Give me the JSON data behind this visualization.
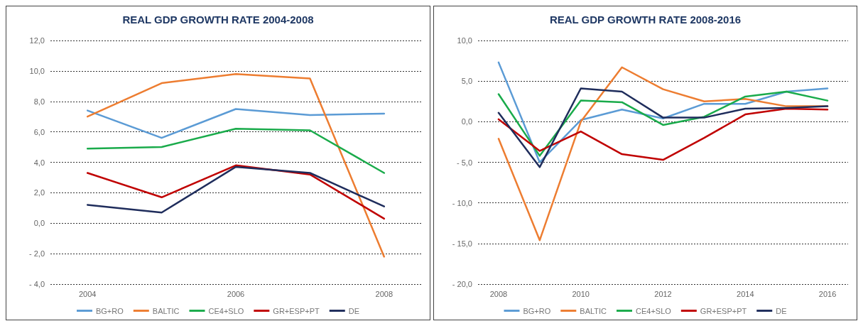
{
  "chart_data": [
    {
      "type": "line",
      "title": "REAL GDP GROWTH RATE 2004-2008",
      "categories": [
        "2004",
        null,
        "2006",
        null,
        "2008"
      ],
      "ylim": [
        -4,
        12
      ],
      "yticks": [
        {
          "value": -4,
          "label": "- 4,0"
        },
        {
          "value": -2,
          "label": "- 2,0"
        },
        {
          "value": 0,
          "label": "0,0"
        },
        {
          "value": 2,
          "label": "2,0"
        },
        {
          "value": 4,
          "label": "4,0"
        },
        {
          "value": 6,
          "label": "6,0"
        },
        {
          "value": 8,
          "label": "8,0"
        },
        {
          "value": 10,
          "label": "10,0"
        },
        {
          "value": 12,
          "label": "12,0"
        }
      ],
      "grid": "y",
      "legend": "bottom",
      "marker": "none",
      "line_style": "solid",
      "series": [
        {
          "name": "BG+RO",
          "color": "#5b9bd5",
          "values": [
            7.4,
            5.6,
            7.5,
            7.1,
            7.2
          ]
        },
        {
          "name": "BALTIC",
          "color": "#ed7d31",
          "values": [
            7.0,
            9.2,
            9.8,
            9.5,
            -2.2
          ]
        },
        {
          "name": "CE4+SLO",
          "color": "#1aab4b",
          "values": [
            4.9,
            5.0,
            6.2,
            6.1,
            3.3
          ]
        },
        {
          "name": "GR+ESP+PT",
          "color": "#c00000",
          "values": [
            3.3,
            1.7,
            3.8,
            3.2,
            0.3
          ]
        },
        {
          "name": "DE",
          "color": "#1f2d5c",
          "values": [
            1.2,
            0.7,
            3.7,
            3.3,
            1.1
          ]
        }
      ]
    },
    {
      "type": "line",
      "title": "REAL GDP GROWTH RATE 2008-2016",
      "categories": [
        "2008",
        null,
        "2010",
        null,
        "2012",
        null,
        "2014",
        null,
        "2016"
      ],
      "ylim": [
        -20,
        10
      ],
      "yticks": [
        {
          "value": -20,
          "label": "- 20,0"
        },
        {
          "value": -15,
          "label": "- 15,0"
        },
        {
          "value": -10,
          "label": "- 10,0"
        },
        {
          "value": -5,
          "label": "- 5,0"
        },
        {
          "value": 0,
          "label": "0,0"
        },
        {
          "value": 5,
          "label": "5,0"
        },
        {
          "value": 10,
          "label": "10,0"
        }
      ],
      "grid": "y",
      "legend": "bottom",
      "marker": "none",
      "line_style": "solid",
      "series": [
        {
          "name": "BG+RO",
          "color": "#5b9bd5",
          "values": [
            7.3,
            -5.0,
            0.2,
            1.5,
            0.4,
            2.2,
            2.2,
            3.7,
            4.1
          ]
        },
        {
          "name": "BALTIC",
          "color": "#ed7d31",
          "values": [
            -2.1,
            -14.6,
            0.0,
            6.7,
            4.0,
            2.5,
            2.8,
            1.9,
            1.9
          ]
        },
        {
          "name": "CE4+SLO",
          "color": "#1aab4b",
          "values": [
            3.4,
            -4.2,
            2.6,
            2.4,
            -0.4,
            0.6,
            3.1,
            3.7,
            2.6
          ]
        },
        {
          "name": "GR+ESP+PT",
          "color": "#c00000",
          "values": [
            0.3,
            -3.6,
            -1.2,
            -4.0,
            -4.7,
            -2.0,
            0.9,
            1.6,
            1.5
          ]
        },
        {
          "name": "DE",
          "color": "#1f2d5c",
          "values": [
            1.1,
            -5.6,
            4.1,
            3.7,
            0.5,
            0.5,
            1.6,
            1.7,
            1.9
          ]
        }
      ]
    }
  ]
}
